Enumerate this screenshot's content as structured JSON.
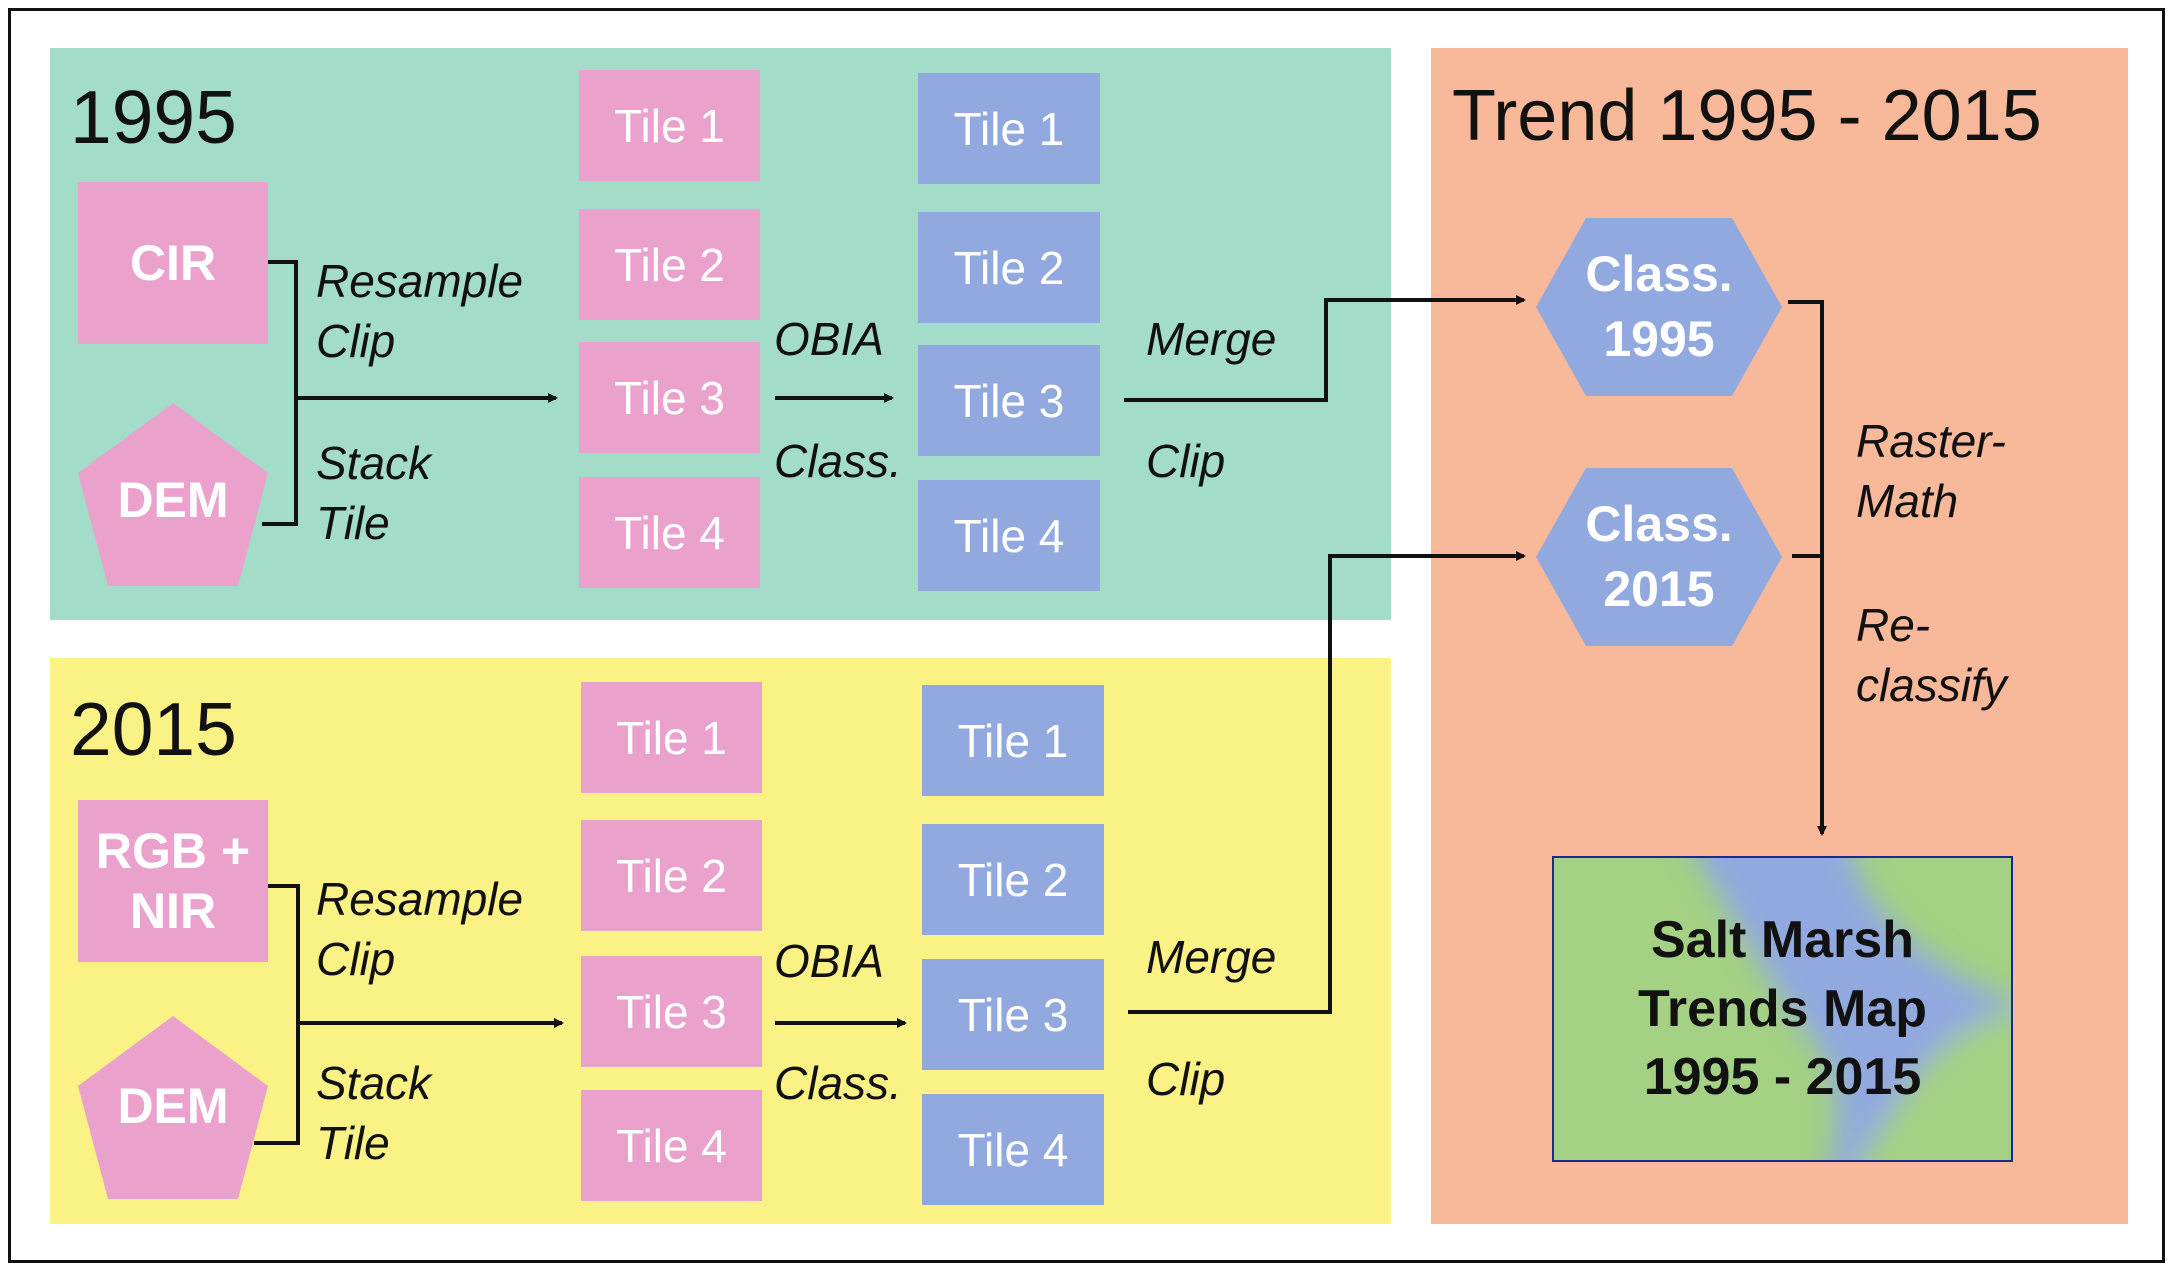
{
  "colors": {
    "panel_1995": "#a3dcc8",
    "panel_2015": "#fbf286",
    "panel_trend": "#f8b89a",
    "pink": "#eaa2cd",
    "blue": "#92a9e0",
    "map_green": "#a4d183",
    "map_border": "#1b2a8c"
  },
  "panel_1995": {
    "title": "1995",
    "source_1": "CIR",
    "source_2": "DEM",
    "pre_label_1": "Resample",
    "pre_label_2": "Clip",
    "pre_label_3": "Stack",
    "pre_label_4": "Tile",
    "input_tiles": [
      "Tile 1",
      "Tile 2",
      "Tile 3",
      "Tile 4"
    ],
    "mid_label_1": "OBIA",
    "mid_label_2": "Class.",
    "class_tiles": [
      "Tile 1",
      "Tile 2",
      "Tile 3",
      "Tile 4"
    ],
    "post_label_1": "Merge",
    "post_label_2": "Clip"
  },
  "panel_2015": {
    "title": "2015",
    "source_1_line1": "RGB +",
    "source_1_line2": "NIR",
    "source_2": "DEM",
    "pre_label_1": "Resample",
    "pre_label_2": "Clip",
    "pre_label_3": "Stack",
    "pre_label_4": "Tile",
    "input_tiles": [
      "Tile 1",
      "Tile 2",
      "Tile 3",
      "Tile 4"
    ],
    "mid_label_1": "OBIA",
    "mid_label_2": "Class.",
    "class_tiles": [
      "Tile 1",
      "Tile 2",
      "Tile 3",
      "Tile 4"
    ],
    "post_label_1": "Merge",
    "post_label_2": "Clip"
  },
  "panel_trend": {
    "title": "Trend 1995 - 2015",
    "class_1995_line1": "Class.",
    "class_1995_line2": "1995",
    "class_2015_line1": "Class.",
    "class_2015_line2": "2015",
    "step_1_line1": "Raster-",
    "step_1_line2": "Math",
    "step_2_line1": "Re-",
    "step_2_line2": "classify",
    "map_line1": "Salt Marsh",
    "map_line2": "Trends Map",
    "map_line3": "1995 - 2015"
  }
}
